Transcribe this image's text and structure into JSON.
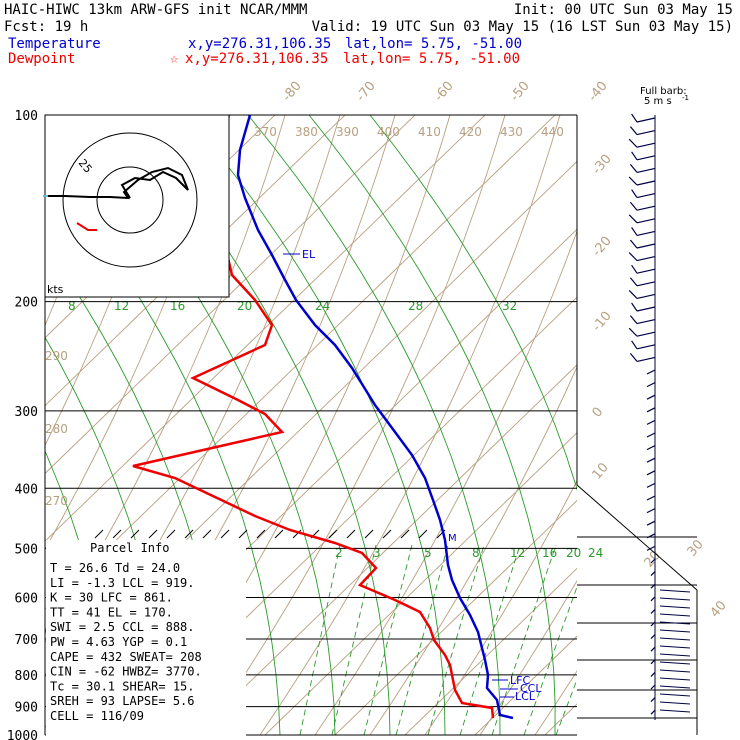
{
  "header": {
    "line1_left": "HAIC-HIWC 13km ARW-GFS init   NCAR/MMM",
    "line1_right": "Init: 00 UTC Sun 03 May 15",
    "line2_left": "Fcst:   19 h",
    "line2_right": "Valid: 19 UTC Sun 03 May 15 (16 LST Sun 03 May 15)",
    "temp_label": "Temperature",
    "temp_xy": "x,y=276.31,106.35",
    "temp_latlon": "lat,lon=  5.75, -51.00",
    "dew_label": "Dewpoint",
    "dew_star": "☆",
    "dew_xy": "x,y=276.31,106.35",
    "dew_latlon": "lat,lon=  5.75, -51.00",
    "barb_caption_1": "Full barb:",
    "barb_caption_2": "5 m s",
    "barb_caption_exp": "-1"
  },
  "colors": {
    "temperature": "#0000cc",
    "dewpoint": "#ee0000",
    "isotherm": "#b8a080",
    "mixing_ratio": "#2a9a2a",
    "adiabat": "#b8a080"
  },
  "chart_data": {
    "type": "skew-t",
    "pressure_levels": [
      "100",
      "200",
      "300",
      "400",
      "500",
      "600",
      "700",
      "800",
      "900",
      "1000"
    ],
    "isotherm_labels_top": [
      "-80",
      "-70",
      "-60",
      "-50",
      "-40"
    ],
    "isotherm_labels_right": [
      "-30",
      "-20",
      "-10",
      "0",
      "10",
      "20",
      "30",
      "40"
    ],
    "theta_labels_top": [
      "370",
      "380",
      "390",
      "400",
      "410",
      "420",
      "430",
      "440"
    ],
    "theta_labels_left": [
      "290",
      "280",
      "270"
    ],
    "mixing_ratio_labels_upper": [
      "8",
      "12",
      "16",
      "20",
      "24",
      "28",
      "32"
    ],
    "mixing_ratio_labels_lower": [
      "2",
      "3",
      "5",
      "8",
      "12",
      "16",
      "20",
      "24"
    ],
    "markers": {
      "el": "EL",
      "lfc": "LFC",
      "ccl": "CCL",
      "lcl": "LCL",
      "m": "M"
    },
    "hodograph": {
      "ring_label": "25",
      "units": "kts"
    }
  },
  "parcel": {
    "title": "Parcel Info",
    "rows": [
      "T  =    26.6  Td =  24.0",
      "LI =   -1.3  LCL =  919.",
      "K  =     30  LFC =  861.",
      "TT =     41   EL =  170.",
      "SWI =   2.5  CCL =  888.",
      "PW =   4.63  YGP =   0.1",
      "CAPE =  432  SWEAT=  208",
      "CIN =   -62  HWBZ= 3770.",
      "Tc =   30.1  SHEAR=  15.",
      "SREH =   93  LAPSE=  5.6",
      "CELL = 116/09"
    ]
  }
}
